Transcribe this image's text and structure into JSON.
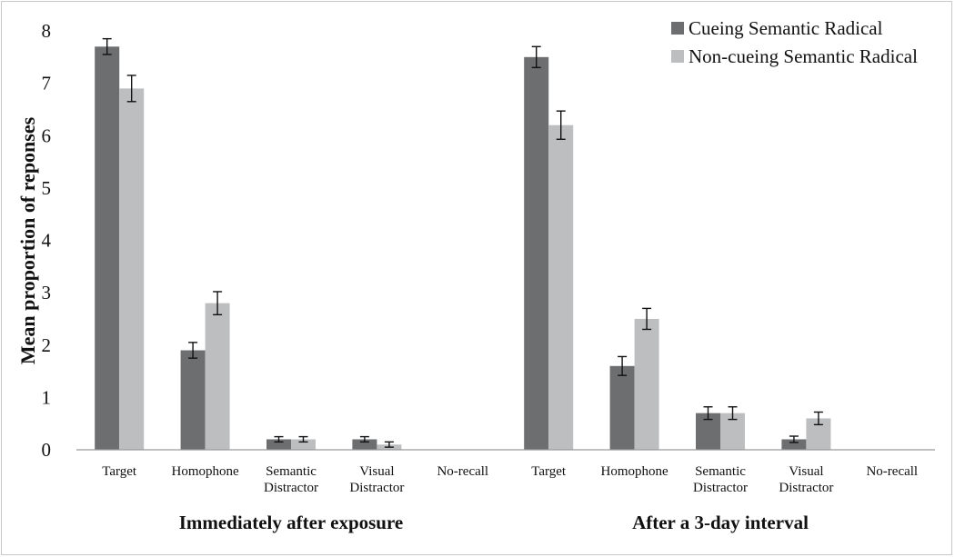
{
  "chart_data": {
    "type": "bar",
    "title": "",
    "ylabel": "Mean proportion of reponses",
    "xlabel": "",
    "ylim": [
      0,
      8
    ],
    "yticks": [
      "0",
      "1",
      "2",
      "3",
      "4",
      "5",
      "6",
      "7",
      "8"
    ],
    "grid": false,
    "legend_position": "top-right",
    "groups": [
      {
        "label": "Immediately after exposure",
        "categories": [
          "Target",
          "Homophone",
          "Semantic\nDistractor",
          "Visual\nDistractor",
          "No-recall"
        ]
      },
      {
        "label": "After a 3-day interval",
        "categories": [
          "Target",
          "Homophone",
          "Semantic\nDistractor",
          "Visual\nDistractor",
          "No-recall"
        ]
      }
    ],
    "series": [
      {
        "name": "Cueing Semantic Radical",
        "color": "#6d6e70",
        "values": [
          7.7,
          1.9,
          0.2,
          0.2,
          0,
          7.5,
          1.6,
          0.7,
          0.2,
          0
        ],
        "errors": [
          0.15,
          0.15,
          0.05,
          0.05,
          0,
          0.2,
          0.18,
          0.12,
          0.06,
          0
        ]
      },
      {
        "name": "Non-cueing Semantic Radical",
        "color": "#bdbec0",
        "values": [
          6.9,
          2.8,
          0.2,
          0.1,
          0,
          6.2,
          2.5,
          0.7,
          0.6,
          0
        ],
        "errors": [
          0.25,
          0.22,
          0.05,
          0.05,
          0,
          0.27,
          0.2,
          0.12,
          0.12,
          0
        ]
      }
    ]
  }
}
